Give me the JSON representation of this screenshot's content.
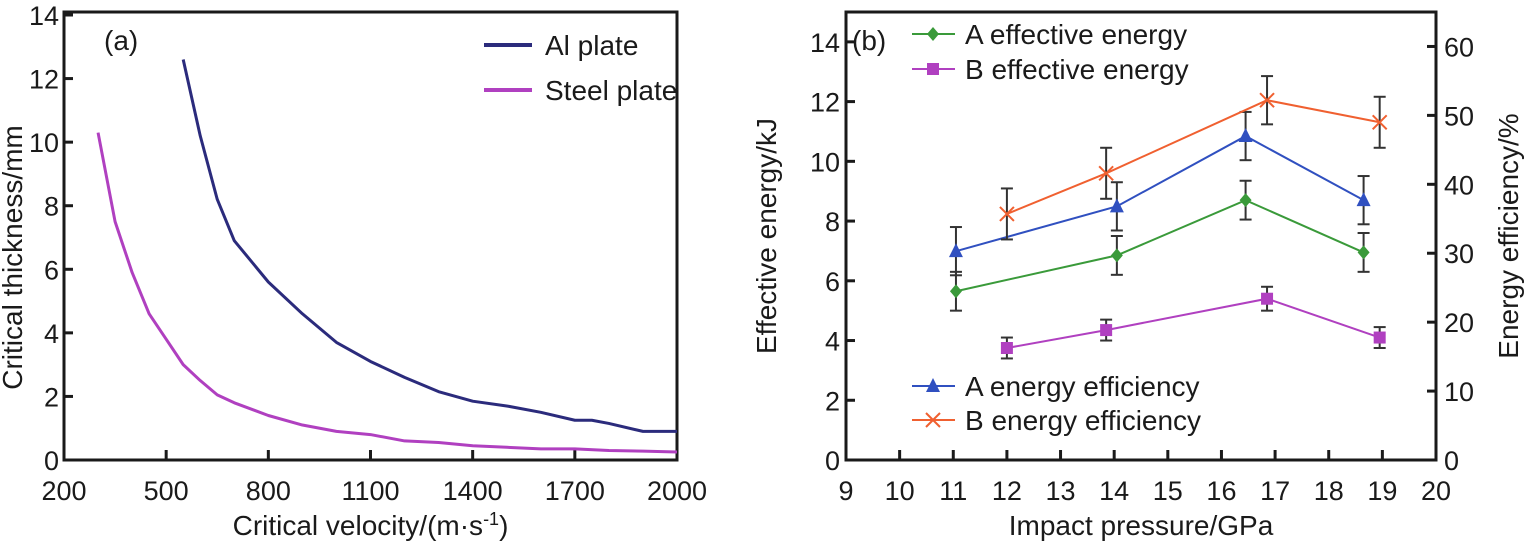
{
  "chart_data": [
    {
      "type": "line",
      "panel_label": "(a)",
      "xlabel": "Critical velocity/(m·s",
      "xlabel_sup": "-1",
      "xlabel_end": ")",
      "ylabel": "Critical thickness/mm",
      "xlim": [
        200,
        2000
      ],
      "ylim": [
        0,
        14
      ],
      "xticks": [
        200,
        500,
        800,
        1100,
        1400,
        1700,
        2000
      ],
      "yticks": [
        0,
        2,
        4,
        6,
        8,
        10,
        12,
        14
      ],
      "grid": false,
      "legend": "top-right",
      "series": [
        {
          "name": "Al plate",
          "color": "#2b2b7c",
          "x": [
            550,
            600,
            650,
            700,
            800,
            900,
            1000,
            1100,
            1200,
            1300,
            1400,
            1500,
            1600,
            1700,
            1750,
            1800,
            1900,
            2000
          ],
          "y": [
            12.6,
            10.2,
            8.2,
            6.9,
            5.6,
            4.6,
            3.7,
            3.1,
            2.6,
            2.15,
            1.85,
            1.7,
            1.5,
            1.25,
            1.25,
            1.15,
            0.9,
            0.9
          ]
        },
        {
          "name": "Steel plate",
          "color": "#b040c0",
          "x": [
            300,
            350,
            400,
            450,
            500,
            550,
            600,
            650,
            700,
            800,
            900,
            1000,
            1100,
            1200,
            1300,
            1400,
            1500,
            1600,
            1700,
            1800,
            1900,
            2000
          ],
          "y": [
            10.3,
            7.5,
            5.9,
            4.6,
            3.8,
            3.0,
            2.5,
            2.05,
            1.8,
            1.4,
            1.1,
            0.9,
            0.8,
            0.6,
            0.55,
            0.45,
            0.4,
            0.35,
            0.35,
            0.3,
            0.28,
            0.25
          ]
        }
      ]
    },
    {
      "type": "line",
      "panel_label": "(b)",
      "xlabel": "Impact pressure/GPa",
      "ylabel": "Effective energy/kJ",
      "ylabel_right": "Energy efficiency/%",
      "xlim": [
        9,
        20
      ],
      "ylim": [
        0,
        15
      ],
      "ylim_right": [
        0,
        65
      ],
      "xticks": [
        9,
        10,
        11,
        12,
        13,
        14,
        15,
        16,
        17,
        18,
        19,
        20
      ],
      "yticks": [
        0,
        2,
        4,
        6,
        8,
        10,
        12,
        14
      ],
      "yticks_right": [
        0,
        10,
        20,
        30,
        40,
        50,
        60
      ],
      "grid": false,
      "legend": "top-left and bottom-left",
      "series": [
        {
          "name": "A effective energy",
          "axis": "left",
          "marker": "diamond",
          "color": "#3a9a3a",
          "x": [
            11.05,
            14.05,
            16.45,
            18.65
          ],
          "y": [
            5.65,
            6.85,
            8.7,
            6.95
          ],
          "err": [
            0.65,
            0.65,
            0.65,
            0.65
          ]
        },
        {
          "name": "B effective energy",
          "axis": "left",
          "marker": "square",
          "color": "#b040c0",
          "x": [
            12.0,
            13.85,
            16.85,
            18.95
          ],
          "y": [
            3.75,
            4.35,
            5.4,
            4.1
          ],
          "err": [
            0.35,
            0.35,
            0.4,
            0.35
          ]
        },
        {
          "name": "A energy efficiency",
          "axis": "right",
          "marker": "triangle",
          "color": "#3050c0",
          "x": [
            11.05,
            14.05,
            16.45,
            18.65
          ],
          "y": [
            30.3,
            36.8,
            47.0,
            37.7
          ],
          "err": [
            3.5,
            3.5,
            3.5,
            3.5
          ]
        },
        {
          "name": "B energy efficiency",
          "axis": "right",
          "marker": "x",
          "color": "#f06030",
          "x": [
            12.0,
            13.85,
            16.85,
            18.95
          ],
          "y": [
            35.7,
            41.6,
            52.2,
            49.0
          ],
          "err": [
            3.7,
            3.7,
            3.5,
            3.7
          ]
        }
      ]
    }
  ]
}
